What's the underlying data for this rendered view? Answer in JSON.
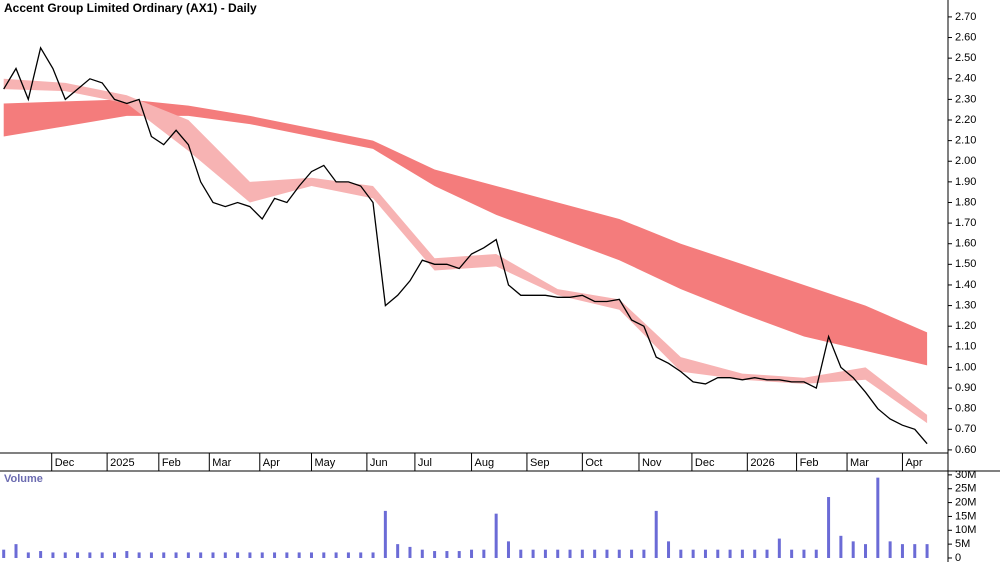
{
  "chart_data": [
    {
      "type": "line",
      "title": "Accent Group Limited Ordinary (AX1) - Daily",
      "x": [
        0,
        1,
        2,
        3,
        4,
        5,
        6,
        7,
        8,
        9,
        10,
        11,
        12,
        13,
        14,
        15,
        16,
        17,
        18,
        19,
        20,
        21,
        22,
        23,
        24,
        25,
        26,
        27,
        28,
        29,
        30,
        31,
        32,
        33,
        34,
        35,
        36,
        37,
        38,
        39,
        40,
        41,
        42,
        43,
        44,
        45,
        46,
        47,
        48,
        49,
        50,
        51,
        52,
        53,
        54,
        55,
        56,
        57,
        58,
        59,
        60,
        61,
        62,
        63,
        64,
        65,
        66,
        67,
        68,
        69,
        70,
        71,
        72,
        73,
        74,
        75
      ],
      "price": {
        "color": "#000000",
        "values": [
          2.35,
          2.45,
          2.3,
          2.55,
          2.45,
          2.3,
          2.35,
          2.4,
          2.38,
          2.3,
          2.28,
          2.3,
          2.12,
          2.08,
          2.15,
          2.08,
          1.9,
          1.8,
          1.78,
          1.8,
          1.78,
          1.72,
          1.82,
          1.8,
          1.88,
          1.95,
          1.98,
          1.9,
          1.9,
          1.88,
          1.8,
          1.3,
          1.35,
          1.42,
          1.52,
          1.5,
          1.5,
          1.48,
          1.55,
          1.58,
          1.62,
          1.4,
          1.35,
          1.35,
          1.35,
          1.34,
          1.34,
          1.35,
          1.32,
          1.32,
          1.33,
          1.23,
          1.2,
          1.05,
          1.02,
          0.98,
          0.93,
          0.92,
          0.95,
          0.95,
          0.94,
          0.95,
          0.94,
          0.94,
          0.93,
          0.93,
          0.9,
          1.15,
          1.0,
          0.95,
          0.88,
          0.8,
          0.75,
          0.72,
          0.7,
          0.63
        ]
      },
      "bands": [
        {
          "color": "#f47c7c",
          "x": [
            0,
            5,
            10,
            15,
            20,
            25,
            30,
            35,
            40,
            45,
            50,
            55,
            60,
            65,
            70,
            75
          ],
          "upper": [
            2.28,
            2.29,
            2.3,
            2.27,
            2.22,
            2.16,
            2.1,
            1.96,
            1.88,
            1.8,
            1.72,
            1.6,
            1.5,
            1.4,
            1.3,
            1.17
          ],
          "lower": [
            2.12,
            2.17,
            2.22,
            2.22,
            2.18,
            2.12,
            2.06,
            1.88,
            1.74,
            1.63,
            1.52,
            1.38,
            1.26,
            1.15,
            1.08,
            1.01
          ]
        },
        {
          "color": "#f7b3b3",
          "x": [
            0,
            5,
            10,
            15,
            20,
            25,
            30,
            35,
            40,
            45,
            50,
            55,
            60,
            65,
            70,
            75
          ],
          "upper": [
            2.4,
            2.38,
            2.32,
            2.2,
            1.9,
            1.92,
            1.88,
            1.53,
            1.55,
            1.38,
            1.33,
            1.05,
            0.97,
            0.95,
            1.0,
            0.77
          ],
          "lower": [
            2.35,
            2.34,
            2.28,
            2.05,
            1.8,
            1.88,
            1.82,
            1.47,
            1.49,
            1.35,
            1.28,
            0.98,
            0.94,
            0.92,
            0.94,
            0.73
          ]
        }
      ],
      "xlim": [
        -0.3,
        76.7
      ],
      "ylim": [
        0.585,
        2.782
      ],
      "xticks": [
        {
          "value": 3.9,
          "label": "Dec"
        },
        {
          "value": 8.4,
          "label": "2025"
        },
        {
          "value": 12.6,
          "label": "Feb"
        },
        {
          "value": 16.7,
          "label": "Mar"
        },
        {
          "value": 20.8,
          "label": "Apr"
        },
        {
          "value": 25,
          "label": "May"
        },
        {
          "value": 29.5,
          "label": "Jun"
        },
        {
          "value": 33.4,
          "label": "Jul"
        },
        {
          "value": 38,
          "label": "Aug"
        },
        {
          "value": 42.5,
          "label": "Sep"
        },
        {
          "value": 47,
          "label": "Oct"
        },
        {
          "value": 51.6,
          "label": "Nov"
        },
        {
          "value": 55.9,
          "label": "Dec"
        },
        {
          "value": 60.4,
          "label": "2026"
        },
        {
          "value": 64.4,
          "label": "Feb"
        },
        {
          "value": 68.5,
          "label": "Mar"
        },
        {
          "value": 73,
          "label": "Apr"
        }
      ],
      "yticks": [
        {
          "value": 2.7,
          "label": "2.70"
        },
        {
          "value": 2.6,
          "label": "2.60"
        },
        {
          "value": 2.5,
          "label": "2.50"
        },
        {
          "value": 2.4,
          "label": "2.40"
        },
        {
          "value": 2.3,
          "label": "2.30"
        },
        {
          "value": 2.2,
          "label": "2.20"
        },
        {
          "value": 2.1,
          "label": "2.10"
        },
        {
          "value": 2.0,
          "label": "2.00"
        },
        {
          "value": 1.9,
          "label": "1.90"
        },
        {
          "value": 1.8,
          "label": "1.80"
        },
        {
          "value": 1.7,
          "label": "1.70"
        },
        {
          "value": 1.6,
          "label": "1.60"
        },
        {
          "value": 1.5,
          "label": "1.50"
        },
        {
          "value": 1.4,
          "label": "1.40"
        },
        {
          "value": 1.3,
          "label": "1.30"
        },
        {
          "value": 1.2,
          "label": "1.20"
        },
        {
          "value": 1.1,
          "label": "1.10"
        },
        {
          "value": 1.0,
          "label": "1.00"
        },
        {
          "value": 0.9,
          "label": "0.90"
        },
        {
          "value": 0.8,
          "label": "0.80"
        },
        {
          "value": 0.7,
          "label": "0.70"
        },
        {
          "value": 0.6,
          "label": "0.60"
        }
      ]
    },
    {
      "type": "bar",
      "title": "Volume",
      "color": "#6b6bd6",
      "values": [
        3000000,
        5000000,
        2000000,
        2500000,
        2000000,
        2000000,
        2000000,
        2000000,
        2000000,
        2000000,
        2500000,
        2000000,
        2000000,
        2000000,
        2000000,
        2000000,
        2000000,
        2000000,
        2000000,
        2000000,
        2000000,
        2000000,
        2000000,
        2000000,
        2000000,
        2000000,
        2000000,
        2000000,
        2000000,
        2000000,
        2000000,
        17000000,
        5000000,
        4000000,
        3000000,
        2500000,
        2500000,
        2500000,
        3000000,
        3000000,
        16000000,
        6000000,
        3000000,
        3000000,
        3000000,
        3000000,
        3000000,
        3000000,
        3000000,
        3000000,
        3000000,
        3000000,
        3000000,
        17000000,
        6000000,
        3000000,
        3000000,
        3000000,
        3000000,
        3000000,
        3000000,
        3000000,
        3000000,
        7000000,
        3000000,
        3000000,
        3000000,
        22000000,
        8000000,
        6000000,
        5000000,
        29000000,
        6000000,
        5000000,
        5000000,
        5000000
      ],
      "ylim": [
        -1450000,
        31400000
      ],
      "yticks": [
        {
          "value": 30000000,
          "label": "30M"
        },
        {
          "value": 25000000,
          "label": "25M"
        },
        {
          "value": 20000000,
          "label": "20M"
        },
        {
          "value": 15000000,
          "label": "15M"
        },
        {
          "value": 10000000,
          "label": "10M"
        },
        {
          "value": 5000000,
          "label": "5M"
        },
        0
      ]
    }
  ]
}
